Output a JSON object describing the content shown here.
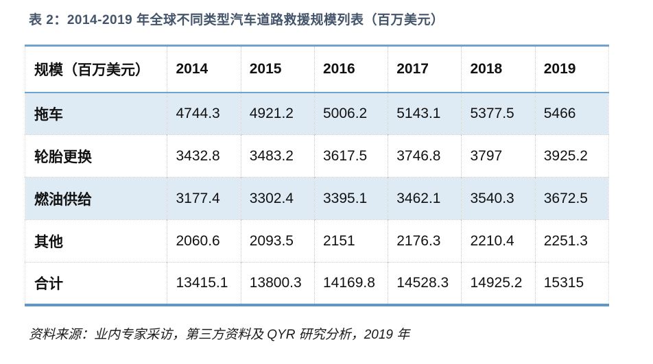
{
  "title": "表 2：2014-2019 年全球不同类型汽车道路救援规模列表（百万美元）",
  "table": {
    "header": [
      "规模（百万美元）",
      "2014",
      "2015",
      "2016",
      "2017",
      "2018",
      "2019"
    ],
    "rows": [
      {
        "label": "拖车",
        "values": [
          "4744.3",
          "4921.2",
          "5006.2",
          "5143.1",
          "5377.5",
          "5466"
        ]
      },
      {
        "label": "轮胎更换",
        "values": [
          "3432.8",
          "3483.2",
          "3617.5",
          "3746.8",
          "3797",
          "3925.2"
        ]
      },
      {
        "label": "燃油供给",
        "values": [
          "3177.4",
          "3302.4",
          "3395.1",
          "3462.1",
          "3540.3",
          "3672.5"
        ]
      },
      {
        "label": "其他",
        "values": [
          "2060.6",
          "2093.5",
          "2151",
          "2176.3",
          "2210.4",
          "2251.3"
        ]
      },
      {
        "label": "合计",
        "values": [
          "13415.1",
          "13800.3",
          "14169.8",
          "14528.3",
          "14925.2",
          "15315"
        ]
      }
    ]
  },
  "source_note": "资料来源：业内专家采访，第三方资料及 QYR 研究分析，2019 年",
  "colors": {
    "title_text": "#44546A",
    "table_border_blue": "#6FA2CE",
    "band_row_blue": "#DEEAF4",
    "body_text": "#111111"
  },
  "chart_data": {
    "type": "table",
    "title": "表 2：2014-2019 年全球不同类型汽车道路救援规模列表（百万美元）",
    "categories": [
      "2014",
      "2015",
      "2016",
      "2017",
      "2018",
      "2019"
    ],
    "series": [
      {
        "name": "拖车",
        "values": [
          4744.3,
          4921.2,
          5006.2,
          5143.1,
          5377.5,
          5466
        ]
      },
      {
        "name": "轮胎更换",
        "values": [
          3432.8,
          3483.2,
          3617.5,
          3746.8,
          3797,
          3925.2
        ]
      },
      {
        "name": "燃油供给",
        "values": [
          3177.4,
          3302.4,
          3395.1,
          3462.1,
          3540.3,
          3672.5
        ]
      },
      {
        "name": "其他",
        "values": [
          2060.6,
          2093.5,
          2151,
          2176.3,
          2210.4,
          2251.3
        ]
      },
      {
        "name": "合计",
        "values": [
          13415.1,
          13800.3,
          14169.8,
          14528.3,
          14925.2,
          15315
        ]
      }
    ],
    "unit": "百万美元"
  }
}
